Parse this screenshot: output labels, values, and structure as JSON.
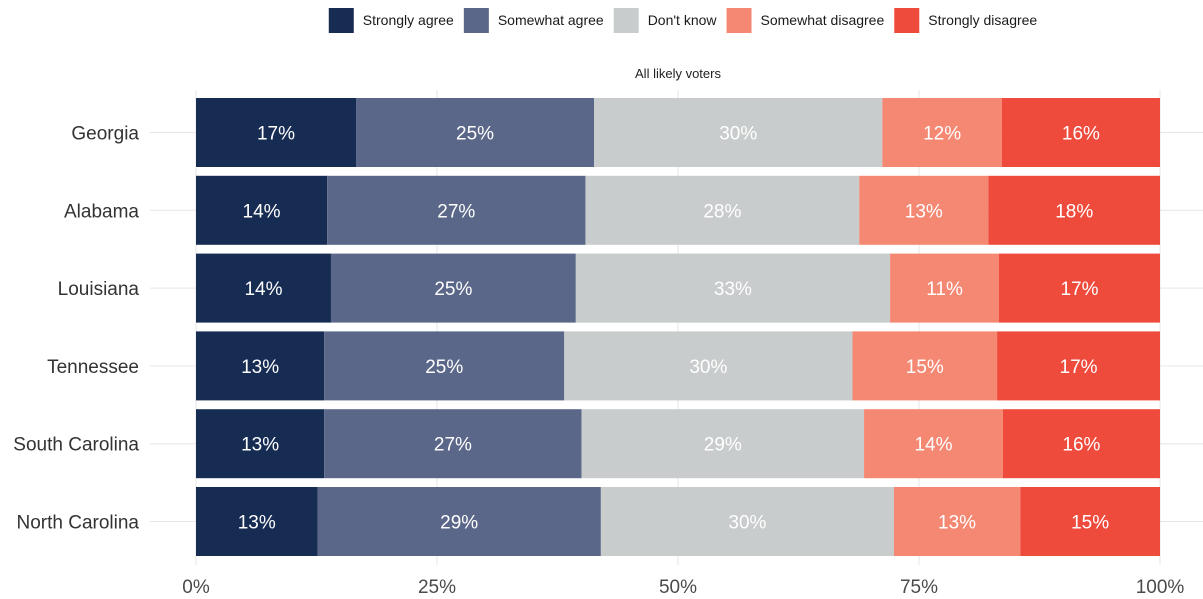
{
  "chart_data": {
    "type": "bar",
    "orientation": "horizontal",
    "stacked": true,
    "normalized": true,
    "title": "",
    "subtitle": "All likely voters",
    "xlabel": "",
    "ylabel": "",
    "xlim": [
      0,
      100
    ],
    "x_ticks": [
      "0%",
      "25%",
      "50%",
      "75%",
      "100%"
    ],
    "grid": true,
    "legend_position": "top",
    "categories": [
      "Georgia",
      "Alabama",
      "Louisiana",
      "Tennessee",
      "South Carolina",
      "North Carolina"
    ],
    "series": [
      {
        "name": "Strongly agree",
        "color": "#172c53",
        "label_color": "#ffffff",
        "values": [
          16.6,
          13.6,
          14.0,
          13.3,
          13.3,
          12.6
        ],
        "labels": [
          "17%",
          "14%",
          "14%",
          "13%",
          "13%",
          "13%"
        ]
      },
      {
        "name": "Somewhat agree",
        "color": "#5b6788",
        "label_color": "#ffffff",
        "values": [
          24.7,
          26.8,
          25.4,
          24.9,
          26.7,
          29.4
        ],
        "labels": [
          "25%",
          "27%",
          "25%",
          "25%",
          "27%",
          "29%"
        ]
      },
      {
        "name": "Don't know",
        "color": "#c8cccc",
        "label_color": "#ffffff",
        "values": [
          29.9,
          28.4,
          32.6,
          29.9,
          29.3,
          30.4
        ],
        "labels": [
          "30%",
          "28%",
          "33%",
          "30%",
          "29%",
          "30%"
        ]
      },
      {
        "name": "Somewhat disagree",
        "color": "#f58873",
        "label_color": "#ffffff",
        "values": [
          12.4,
          13.4,
          11.3,
          15.0,
          14.4,
          13.1
        ],
        "labels": [
          "12%",
          "13%",
          "11%",
          "15%",
          "14%",
          "13%"
        ]
      },
      {
        "name": "Strongly disagree",
        "color": "#ef4b3d",
        "label_color": "#ffffff",
        "values": [
          16.4,
          17.8,
          16.7,
          16.9,
          16.3,
          14.5
        ],
        "labels": [
          "16%",
          "18%",
          "17%",
          "17%",
          "16%",
          "15%"
        ]
      }
    ]
  }
}
